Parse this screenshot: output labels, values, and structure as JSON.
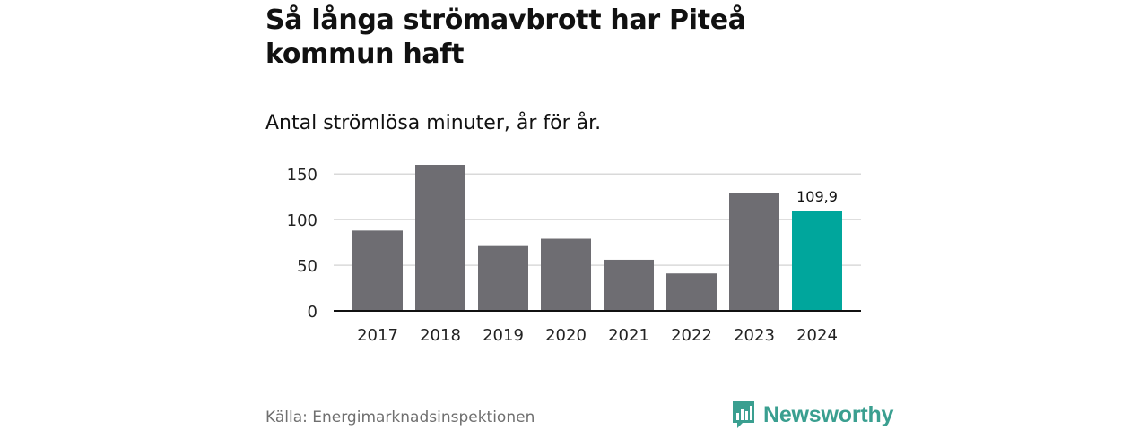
{
  "header": {
    "title": "Så långa strömavbrott har Piteå kommun haft",
    "subtitle": "Antal strömlösa minuter, år för år."
  },
  "footer": {
    "source": "Källa: Energimarknadsinspektionen",
    "brand": "Newsworthy"
  },
  "colors": {
    "bar": "#6e6d72",
    "highlight": "#00a69c",
    "grid": "#d9d9d9",
    "axis": "#111111",
    "brand": "#3a9f90"
  },
  "chart_data": {
    "type": "bar",
    "title": "Så långa strömavbrott har Piteå kommun haft",
    "subtitle": "Antal strömlösa minuter, år för år.",
    "xlabel": "",
    "ylabel": "",
    "categories": [
      "2017",
      "2018",
      "2019",
      "2020",
      "2021",
      "2022",
      "2023",
      "2024"
    ],
    "values": [
      88,
      160,
      71,
      79,
      56,
      41,
      129,
      109.9
    ],
    "ylim": [
      0,
      160
    ],
    "yticks": [
      0,
      50,
      100,
      150
    ],
    "ytick_labels": [
      "0",
      "50",
      "100",
      "150"
    ],
    "grid": true,
    "highlight_category": "2024",
    "data_labels": [
      {
        "category": "2024",
        "text": "109,9"
      }
    ]
  }
}
